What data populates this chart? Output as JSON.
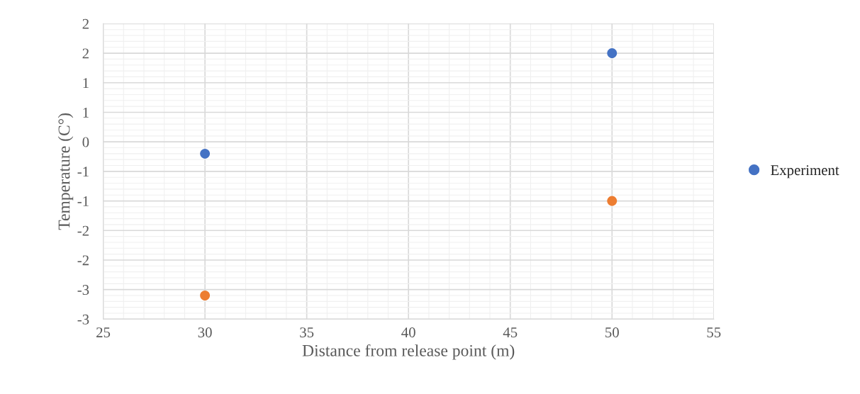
{
  "chart_data": {
    "type": "scatter",
    "xlabel": "Distance from release point (m)",
    "ylabel": "Temperature (C°)",
    "x": [
      30,
      50
    ],
    "xlim": [
      25,
      55
    ],
    "xticks": [
      25,
      30,
      35,
      40,
      45,
      50,
      55
    ],
    "ylim": [
      -3,
      2
    ],
    "yticks": [
      -3,
      {
        "value": -2.5,
        "label": "-3"
      },
      -2,
      {
        "value": -1.5,
        "label": "-2"
      },
      -1,
      {
        "value": -0.5,
        "label": "-1"
      },
      0,
      {
        "value": 0.5,
        "label": "1"
      },
      1,
      {
        "value": 1.5,
        "label": "2"
      },
      2
    ],
    "series": [
      {
        "name": "Experiment",
        "color": "#4472c4",
        "values": [
          -0.2,
          1.5
        ]
      },
      {
        "color": "#ed7d31",
        "values": [
          -2.6,
          -1.0
        ]
      }
    ],
    "grid": true,
    "legend": "right",
    "marker": "circle"
  }
}
